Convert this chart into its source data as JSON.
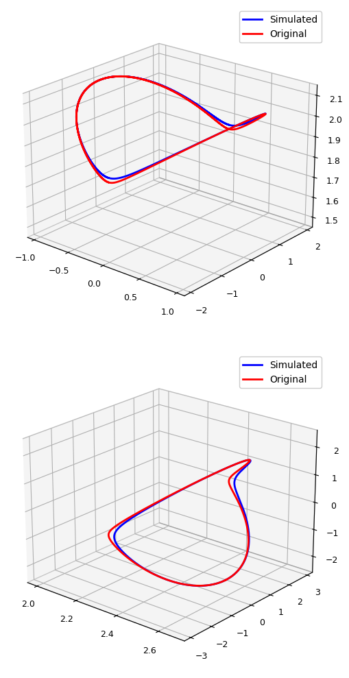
{
  "legend_labels": [
    "Simulated",
    "Original"
  ],
  "line_colors": [
    "blue",
    "red"
  ],
  "line_width": 2.0,
  "plot1": {
    "xlim": [
      -1.1,
      1.1
    ],
    "ylim": [
      -2.2,
      2.2
    ],
    "zlim": [
      1.45,
      2.15
    ],
    "xticks": [
      -1.0,
      -0.5,
      0.0,
      0.5,
      1.0
    ],
    "yticks": [
      -2,
      -1,
      0,
      1,
      2
    ],
    "zticks": [
      1.5,
      1.6,
      1.7,
      1.8,
      1.9,
      2.0,
      2.1
    ],
    "elev": 22,
    "azim": -50
  },
  "plot2": {
    "xlim": [
      1.95,
      2.72
    ],
    "ylim": [
      -3.3,
      3.3
    ],
    "zlim": [
      -2.6,
      2.6
    ],
    "xticks": [
      2.0,
      2.2,
      2.4,
      2.6
    ],
    "yticks": [
      -3,
      -2,
      -1,
      0,
      1,
      2,
      3
    ],
    "zticks": [
      -2,
      -1,
      0,
      1,
      2
    ],
    "elev": 22,
    "azim": -50
  }
}
